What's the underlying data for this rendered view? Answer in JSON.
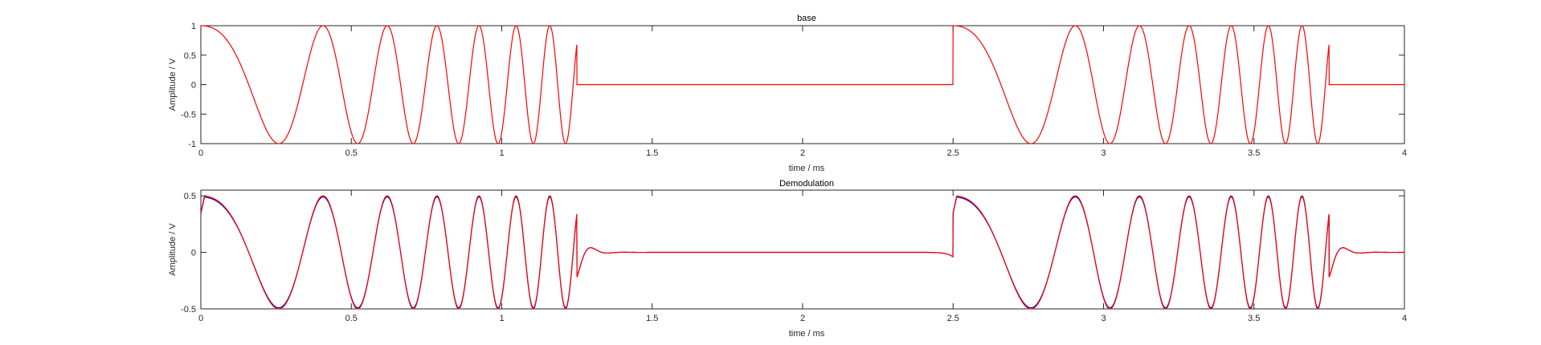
{
  "chart_data": [
    {
      "type": "line",
      "title": "base",
      "xlabel": "time / ms",
      "ylabel": "Amplitude / V",
      "xlim": [
        0,
        4
      ],
      "ylim": [
        -1,
        1
      ],
      "xticks": [
        "0",
        "0.5",
        "1",
        "1.5",
        "2",
        "2.5",
        "3",
        "3.5",
        "4"
      ],
      "yticks": [
        "-1",
        "-0.5",
        "0",
        "0.5",
        "1"
      ],
      "grid": false,
      "signal": "linear chirp cos(2*pi*(f0*t + k*t^2/2)) in bursts, 0 between bursts",
      "burst_starts_ms": [
        0,
        2.5
      ],
      "burst_duration_ms": 1.25,
      "f0_kHz": 1.0,
      "chirp_rate_kHz_per_ms": 7.2,
      "series": [
        {
          "amplitude": 1.0,
          "color": "#ff0000"
        }
      ]
    },
    {
      "type": "line",
      "title": "Demodulation",
      "xlabel": "time / ms",
      "ylabel": "Amplitude / V",
      "xlim": [
        0,
        4
      ],
      "ylim": [
        -0.5,
        0.55
      ],
      "xticks": [
        "0",
        "0.5",
        "1",
        "1.5",
        "2",
        "2.5",
        "3",
        "3.5",
        "4"
      ],
      "yticks": [
        "-0.5",
        "0",
        "0.5"
      ],
      "grid": false,
      "signal": "low-pass filtered copy of the chirp bursts with ringing at burst edges",
      "burst_starts_ms": [
        0,
        2.5
      ],
      "burst_duration_ms": 1.25,
      "f0_kHz": 1.0,
      "chirp_rate_kHz_per_ms": 7.2,
      "series": [
        {
          "amplitude": 0.49,
          "color": "#0000b0"
        },
        {
          "amplitude": 0.5,
          "color": "#ff0000"
        }
      ]
    }
  ]
}
